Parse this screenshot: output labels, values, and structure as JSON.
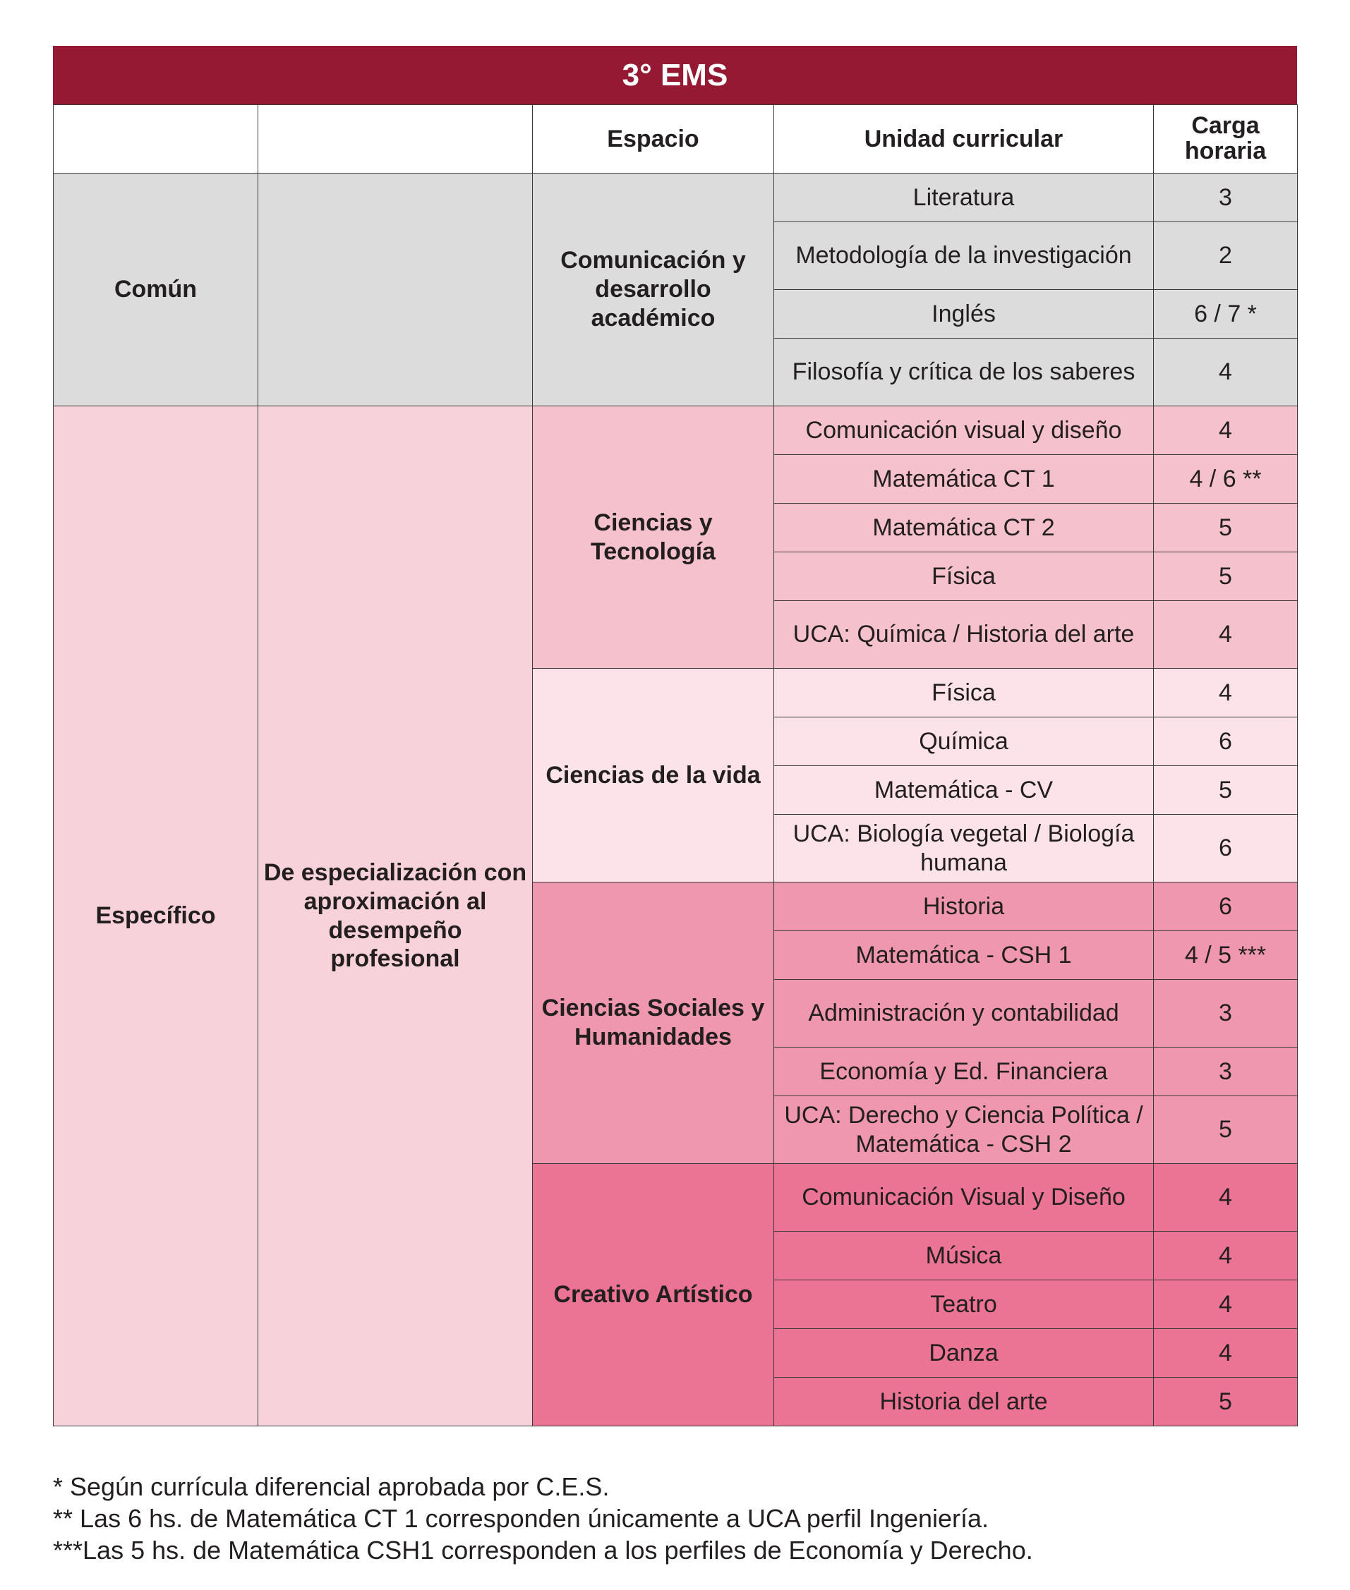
{
  "title": "3° EMS",
  "headers": [
    "",
    "",
    "Espacio",
    "Unidad curricular",
    "Carga horaria"
  ],
  "colors": {
    "title_band": "#951932",
    "comun": "#dcdcdc",
    "especifico": "#f8d2da",
    "ciencias_tecnologia": "#f5c1cd",
    "ciencias_vida": "#fbe3e9",
    "ciencias_sociales": "#ef97ae",
    "creativo_artistico": "#eb7393"
  },
  "groups": [
    {
      "tronco": "Común",
      "orientacion": "",
      "color": "#dcdcdc",
      "espacios": [
        {
          "name": "Comunicación y desarrollo académico",
          "color": "#dcdcdc",
          "units": [
            {
              "unit": "Literatura",
              "hours": "3"
            },
            {
              "unit": "Metodología de la investigación",
              "hours": "2",
              "two": true
            },
            {
              "unit": "Inglés",
              "hours": "6 / 7 *"
            },
            {
              "unit": "Filosofía y crítica de los saberes",
              "hours": "4",
              "two": true
            }
          ]
        }
      ]
    },
    {
      "tronco": "Específico",
      "orientacion": "De especialización con aproximación al desempeño profesional",
      "color": "#f8d2da",
      "espacios": [
        {
          "name": "Ciencias y Tecnología",
          "color": "#f5c1cd",
          "units": [
            {
              "unit": "Comunicación visual y diseño",
              "hours": "4"
            },
            {
              "unit": "Matemática CT 1",
              "hours": "4 / 6 **"
            },
            {
              "unit": "Matemática CT 2",
              "hours": "5"
            },
            {
              "unit": "Física",
              "hours": "5"
            },
            {
              "unit": "UCA: Química / Historia del arte",
              "hours": "4",
              "two": true
            }
          ]
        },
        {
          "name": "Ciencias de la vida",
          "color": "#fbe3e9",
          "units": [
            {
              "unit": "Física",
              "hours": "4"
            },
            {
              "unit": "Química",
              "hours": "6"
            },
            {
              "unit": "Matemática - CV",
              "hours": "5"
            },
            {
              "unit": "UCA: Biología vegetal / Biología humana",
              "hours": "6",
              "two": true
            }
          ]
        },
        {
          "name": "Ciencias Sociales y Humanidades",
          "color": "#ef97ae",
          "units": [
            {
              "unit": "Historia",
              "hours": "6"
            },
            {
              "unit": "Matemática - CSH 1",
              "hours": "4 / 5 ***"
            },
            {
              "unit": "Administración y contabilidad",
              "hours": "3",
              "two": true
            },
            {
              "unit": "Economía y Ed. Financiera",
              "hours": "3"
            },
            {
              "unit": "UCA: Derecho y Ciencia Política / Matemática - CSH 2",
              "hours": "5",
              "two": true
            }
          ]
        },
        {
          "name": "Creativo Artístico",
          "color": "#eb7393",
          "units": [
            {
              "unit": "Comunicación Visual y Diseño",
              "hours": "4",
              "two": true
            },
            {
              "unit": "Música",
              "hours": "4"
            },
            {
              "unit": "Teatro",
              "hours": "4"
            },
            {
              "unit": "Danza",
              "hours": "4"
            },
            {
              "unit": "Historia del arte",
              "hours": "5"
            }
          ]
        }
      ]
    }
  ],
  "footnotes": [
    "*  Según currícula diferencial aprobada por C.E.S.",
    "** Las 6 hs. de Matemática CT 1 corresponden únicamente a UCA perfil Ingeniería.",
    "***Las 5 hs. de Matemática CSH1 corresponden a los perfiles de Economía y Derecho."
  ]
}
